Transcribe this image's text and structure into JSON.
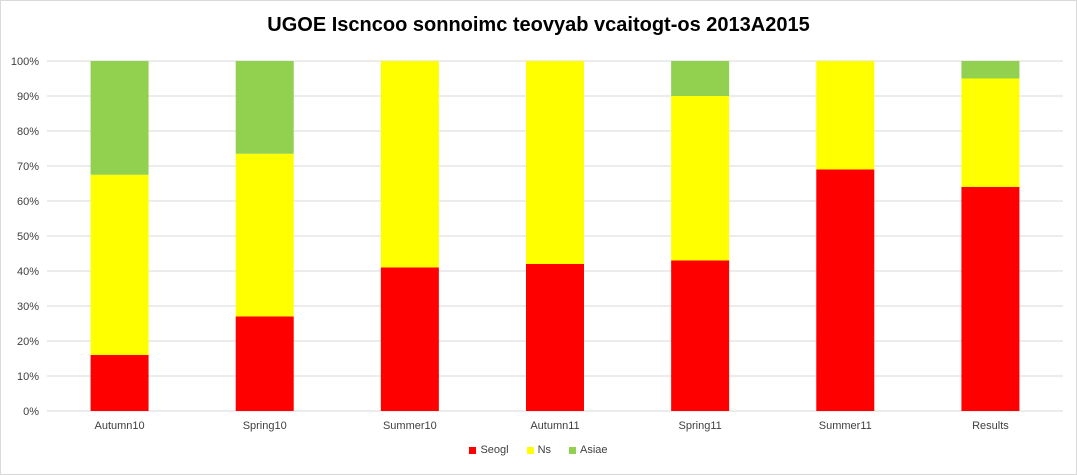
{
  "chart_data": {
    "type": "bar",
    "stacked": true,
    "percent": true,
    "title": "UGOE Iscncoo sonnoimc teovyab vcaitogt-os 2013A2015",
    "categories": [
      "Autumn10",
      "Spring10",
      "Summer10",
      "Autumn11",
      "Spring11",
      "Summer11",
      "Results"
    ],
    "series": [
      {
        "name": "Seogl",
        "color": "#ff0000",
        "values": [
          16,
          27,
          41,
          42,
          43,
          69,
          64
        ]
      },
      {
        "name": "Ns",
        "color": "#ffff00",
        "values": [
          51.5,
          46.5,
          59,
          58,
          47,
          31,
          31
        ]
      },
      {
        "name": "Asiae",
        "color": "#92d050",
        "values": [
          32.5,
          26.5,
          0,
          0,
          10,
          0,
          5
        ]
      }
    ],
    "y_ticks": [
      "0%",
      "10%",
      "20%",
      "30%",
      "40%",
      "50%",
      "60%",
      "70%",
      "80%",
      "90%",
      "100%"
    ],
    "ylim": [
      0,
      100
    ],
    "grid": true,
    "legend_position": "bottom"
  }
}
